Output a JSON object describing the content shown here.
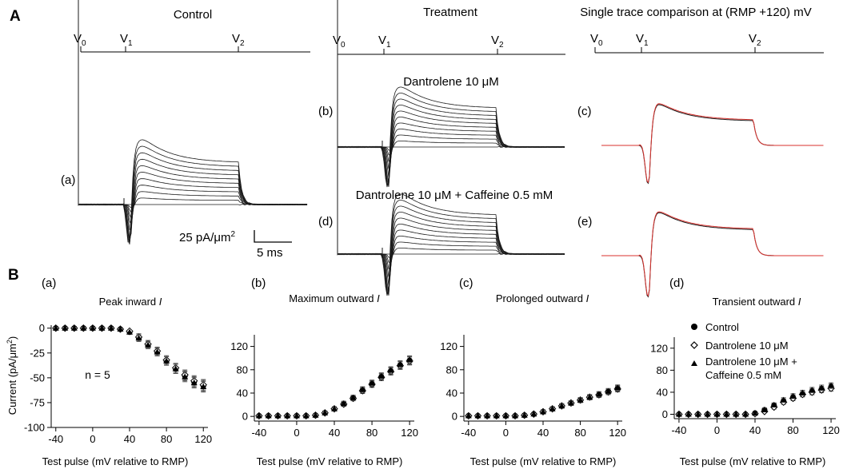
{
  "figure": {
    "panel_A": "A",
    "panel_B": "B"
  },
  "traces": {
    "control_title": "Control",
    "treatment_title": "Treatment",
    "comparison_title": "Single trace comparison at (RMP +120) mV",
    "protocol": {
      "v0": "V",
      "v0_sub": "0",
      "v1": "V",
      "v1_sub": "1",
      "v2": "V",
      "v2_sub": "2"
    },
    "dantrolene_label": "Dantrolene 10 μM",
    "dantrolene_caffeine_label": "Dantrolene 10 μM + Caffeine 0.5 mM",
    "sub_a": "(a)",
    "sub_b": "(b)",
    "sub_c": "(c)",
    "sub_d": "(d)",
    "sub_e": "(e)",
    "scale_y": "25 pA/μm",
    "scale_y_sup": "2",
    "scale_x": "5 ms",
    "overlay_color": "#d9322e",
    "trace_color": "#1a1a1a"
  },
  "shared": {
    "ylabel": "Current (pA/μm",
    "ylabel_sup": "2",
    "ylabel_end": ")",
    "xlabel": "Test pulse (mV relative to RMP)",
    "n_label": "n = 5",
    "legend": [
      "Control",
      "Dantrolene 10 μM",
      "Dantrolene 10 μM +",
      "Caffeine 0.5 mM"
    ]
  },
  "chart_data": [
    {
      "type": "scatter",
      "panel": "(a)",
      "title": "Peak inward ",
      "title_italic": "I",
      "x": [
        -40,
        -30,
        -20,
        -10,
        0,
        10,
        20,
        30,
        40,
        50,
        60,
        70,
        80,
        90,
        100,
        110,
        120
      ],
      "xlim": [
        -45,
        125
      ],
      "xticks": [
        -40,
        0,
        40,
        80,
        120
      ],
      "ylim": [
        -100,
        3
      ],
      "yticks": [
        0,
        -25,
        -50,
        -75,
        -100
      ],
      "series": [
        {
          "name": "Control",
          "values": [
            0,
            0,
            0,
            0,
            0,
            0,
            0,
            -1,
            -4,
            -10,
            -17,
            -24,
            -33,
            -41,
            -48,
            -54,
            -58
          ]
        },
        {
          "name": "Dantrolene 10 μM",
          "values": [
            0,
            0,
            0,
            0,
            0,
            0,
            0,
            -1,
            -3,
            -9,
            -16,
            -23,
            -32,
            -40,
            -47,
            -53,
            -57
          ]
        },
        {
          "name": "Dantrolene 10 μM + Caffeine 0.5 mM",
          "values": [
            0,
            0,
            0,
            0,
            0,
            0,
            0,
            -1,
            -4,
            -10,
            -17,
            -24,
            -33,
            -41,
            -49,
            -55,
            -59
          ]
        }
      ]
    },
    {
      "type": "scatter",
      "panel": "(b)",
      "title": "Maximum outward ",
      "title_italic": "I",
      "x": [
        -40,
        -30,
        -20,
        -10,
        0,
        10,
        20,
        30,
        40,
        50,
        60,
        70,
        80,
        90,
        100,
        110,
        120
      ],
      "xlim": [
        -45,
        125
      ],
      "xticks": [
        -40,
        0,
        40,
        80,
        120
      ],
      "ylim": [
        -8,
        140
      ],
      "yticks": [
        0,
        40,
        80,
        120
      ],
      "series": [
        {
          "name": "Control",
          "values": [
            1,
            1,
            1,
            1,
            1,
            1,
            2,
            6,
            13,
            22,
            32,
            45,
            56,
            68,
            78,
            88,
            96
          ]
        },
        {
          "name": "Dantrolene 10 μM",
          "values": [
            1,
            1,
            1,
            1,
            1,
            1,
            2,
            6,
            13,
            21,
            31,
            44,
            55,
            67,
            77,
            87,
            95
          ]
        },
        {
          "name": "Dantrolene 10 μM + Caffeine 0.5 mM",
          "values": [
            1,
            1,
            1,
            1,
            1,
            1,
            2,
            6,
            13,
            22,
            32,
            46,
            57,
            69,
            79,
            89,
            97
          ]
        }
      ]
    },
    {
      "type": "scatter",
      "panel": "(c)",
      "title": "Prolonged outward ",
      "title_italic": "I",
      "x": [
        -40,
        -30,
        -20,
        -10,
        0,
        10,
        20,
        30,
        40,
        50,
        60,
        70,
        80,
        90,
        100,
        110,
        120
      ],
      "xlim": [
        -45,
        125
      ],
      "xticks": [
        -40,
        0,
        40,
        80,
        120
      ],
      "ylim": [
        -8,
        140
      ],
      "yticks": [
        0,
        40,
        80,
        120
      ],
      "series": [
        {
          "name": "Control",
          "values": [
            1,
            1,
            1,
            1,
            1,
            1,
            2,
            4,
            8,
            13,
            18,
            23,
            28,
            33,
            37,
            43,
            48
          ]
        },
        {
          "name": "Dantrolene 10 μM",
          "values": [
            1,
            1,
            1,
            1,
            1,
            1,
            2,
            4,
            8,
            13,
            18,
            23,
            28,
            33,
            37,
            42,
            47
          ]
        },
        {
          "name": "Dantrolene 10 μM + Caffeine 0.5 mM",
          "values": [
            1,
            1,
            1,
            1,
            1,
            1,
            2,
            4,
            8,
            13,
            18,
            23,
            28,
            33,
            38,
            43,
            49
          ]
        }
      ]
    },
    {
      "type": "scatter",
      "panel": "(d)",
      "title": "Transient outward ",
      "title_italic": "I",
      "x": [
        -40,
        -30,
        -20,
        -10,
        0,
        10,
        20,
        30,
        40,
        50,
        60,
        70,
        80,
        90,
        100,
        110,
        120
      ],
      "xlim": [
        -45,
        125
      ],
      "xticks": [
        -40,
        0,
        40,
        80,
        120
      ],
      "ylim": [
        -8,
        140
      ],
      "yticks": [
        0,
        40,
        80,
        120
      ],
      "series": [
        {
          "name": "Control",
          "values": [
            0,
            0,
            0,
            0,
            0,
            0,
            0,
            0,
            2,
            8,
            16,
            24,
            31,
            37,
            42,
            46,
            50
          ]
        },
        {
          "name": "Dantrolene 10 μM",
          "values": [
            0,
            0,
            0,
            0,
            0,
            0,
            0,
            0,
            1,
            5,
            13,
            22,
            29,
            36,
            40,
            44,
            47
          ]
        },
        {
          "name": "Dantrolene 10 μM + Caffeine 0.5 mM",
          "values": [
            0,
            0,
            0,
            0,
            0,
            0,
            0,
            0,
            2,
            8,
            17,
            26,
            33,
            39,
            44,
            48,
            52
          ]
        }
      ]
    }
  ]
}
